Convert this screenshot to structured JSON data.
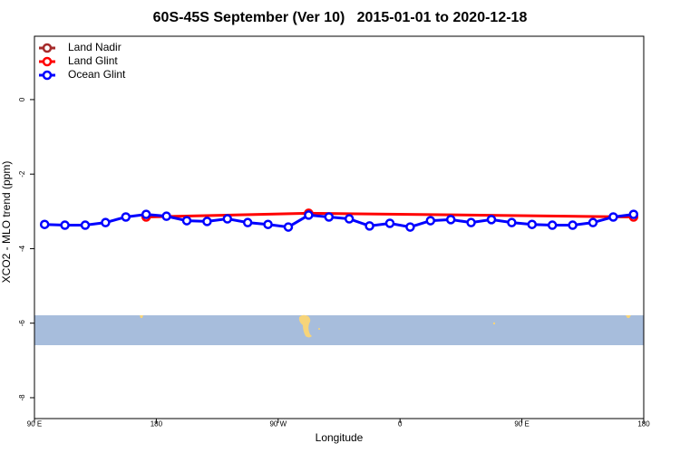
{
  "chart_data": {
    "type": "line",
    "title": "60S-45S September (Ver 10)   2015-01-01 to 2020-12-18",
    "x_label": "Longitude",
    "y_label": "XCO2 - MLO trend (ppm)",
    "xlim": [
      90,
      540
    ],
    "ylim": [
      -8.56,
      1.7
    ],
    "xticks": [
      {
        "value": 90,
        "label": "90 E"
      },
      180,
      {
        "value": 270,
        "label": "90 W"
      },
      {
        "value": 360,
        "label": "0"
      },
      {
        "value": 450,
        "label": "90 E"
      },
      {
        "value": 540,
        "label": "180"
      }
    ],
    "yticks": [
      0,
      -2,
      -4,
      -6,
      -8
    ],
    "legend_position": "top-left",
    "series": [
      {
        "name": "Land Nadir",
        "color": "#a52a2a",
        "x": [],
        "values": []
      },
      {
        "name": "Land Glint",
        "color": "#ff0000",
        "x": [
          172.5,
          292.5,
          532.5
        ],
        "values": [
          -3.15,
          -3.05,
          -3.15
        ]
      },
      {
        "name": "Ocean Glint",
        "color": "#0000ff",
        "x": [
          97.5,
          112.5,
          127.5,
          142.5,
          157.5,
          172.5,
          187.5,
          202.5,
          217.5,
          232.5,
          247.5,
          262.5,
          277.5,
          292.5,
          307.5,
          322.5,
          337.5,
          352.5,
          367.5,
          382.5,
          397.5,
          412.5,
          427.5,
          442.5,
          457.5,
          472.5,
          487.5,
          502.5,
          517.5,
          532.5
        ],
        "values": [
          -3.35,
          -3.37,
          -3.37,
          -3.3,
          -3.15,
          -3.08,
          -3.13,
          -3.25,
          -3.27,
          -3.2,
          -3.3,
          -3.35,
          -3.42,
          -3.1,
          -3.15,
          -3.2,
          -3.39,
          -3.32,
          -3.42,
          -3.25,
          -3.22,
          -3.3,
          -3.22,
          -3.3,
          -3.35,
          -3.37,
          -3.37,
          -3.3,
          -3.15,
          -3.08
        ]
      }
    ]
  }
}
